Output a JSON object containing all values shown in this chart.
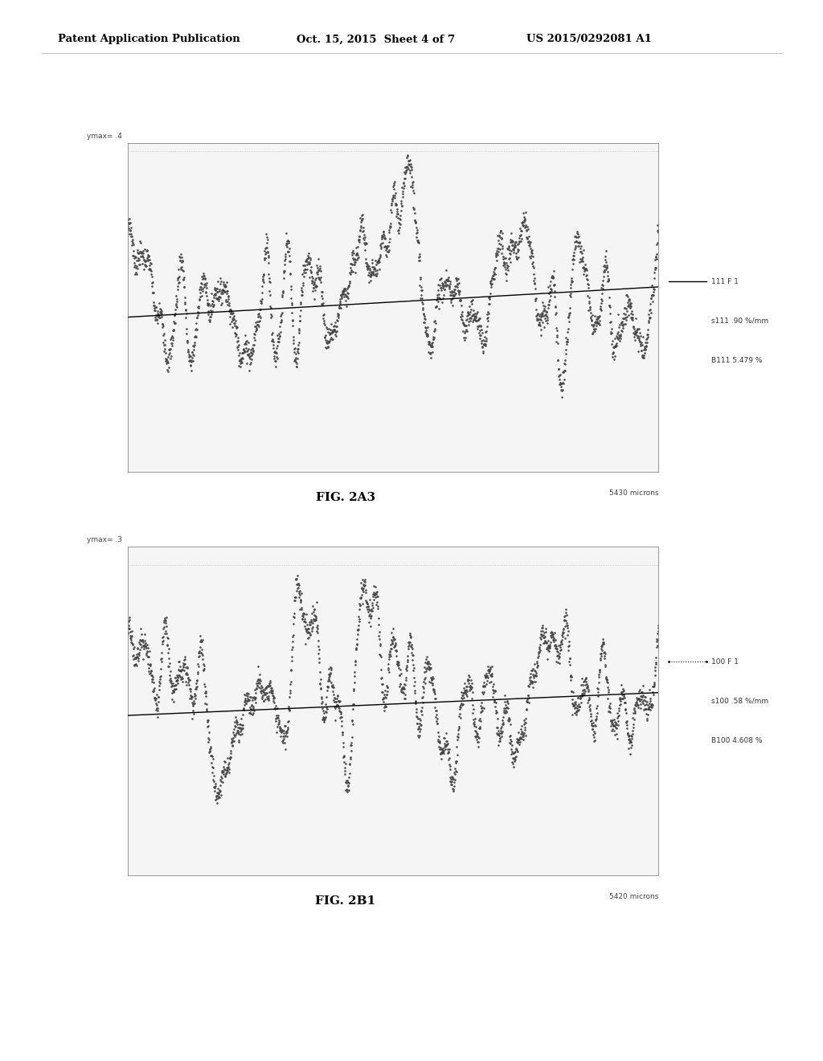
{
  "fig1_label": "FIG. 2A3",
  "fig2_label": "FIG. 2B1",
  "fig1_ymax_label": "ymax= .4",
  "fig2_ymax_label": "ymax= .3",
  "fig1_xmax_label": "5430 microns",
  "fig2_xmax_label": "5420 microns",
  "fig1_legend": [
    "111 F 1",
    "s111 .90 %/mm",
    "B111 5.479 %"
  ],
  "fig2_legend": [
    "100 F 1",
    "s100 .58 %/mm",
    "B100 4.608 %"
  ],
  "header_left": "Patent Application Publication",
  "header_mid": "Oct. 15, 2015  Sheet 4 of 7",
  "header_right": "US 2015/0292081 A1",
  "background_color": "#ffffff",
  "plot_bg_color": "#f5f5f5",
  "dot_color": "#444444",
  "trend_color": "#000000"
}
